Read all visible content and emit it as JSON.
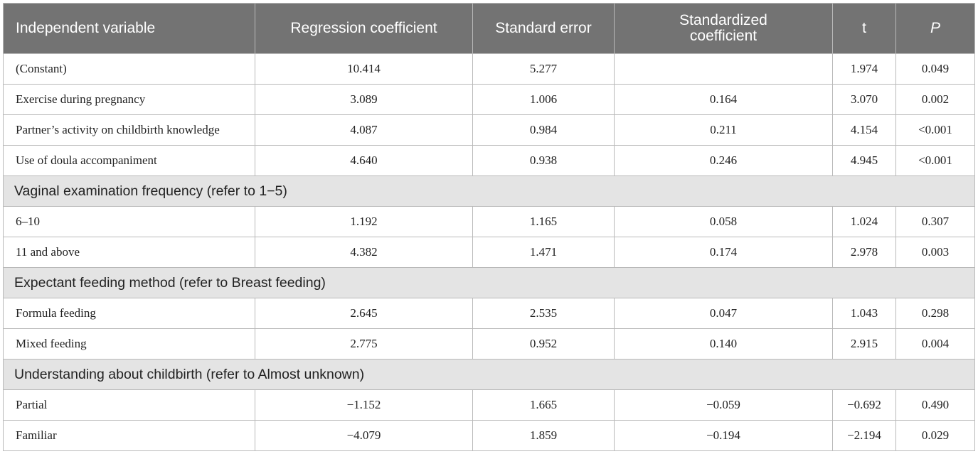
{
  "table": {
    "headers": [
      "Independent variable",
      "Regression coefficient",
      "Standard error",
      "Standardized coefficient",
      "t",
      "P"
    ],
    "rows": [
      {
        "type": "data",
        "cells": [
          "(Constant)",
          "10.414",
          "5.277",
          "",
          "1.974",
          "0.049"
        ]
      },
      {
        "type": "data",
        "cells": [
          "Exercise during pregnancy",
          "3.089",
          "1.006",
          "0.164",
          "3.070",
          "0.002"
        ]
      },
      {
        "type": "data",
        "cells": [
          "Partner’s activity on childbirth knowledge",
          "4.087",
          "0.984",
          "0.211",
          "4.154",
          "<0.001"
        ]
      },
      {
        "type": "data",
        "cells": [
          "Use of doula accompaniment",
          "4.640",
          "0.938",
          "0.246",
          "4.945",
          "<0.001"
        ]
      },
      {
        "type": "group",
        "label": "Vaginal examination frequency (refer to 1−5)"
      },
      {
        "type": "data",
        "cells": [
          "6–10",
          "1.192",
          "1.165",
          "0.058",
          "1.024",
          "0.307"
        ]
      },
      {
        "type": "data",
        "cells": [
          "11 and above",
          "4.382",
          "1.471",
          "0.174",
          "2.978",
          "0.003"
        ]
      },
      {
        "type": "group",
        "label": "Expectant feeding method (refer to Breast feeding)"
      },
      {
        "type": "data",
        "cells": [
          "Formula feeding",
          "2.645",
          "2.535",
          "0.047",
          "1.043",
          "0.298"
        ]
      },
      {
        "type": "data",
        "cells": [
          "Mixed feeding",
          "2.775",
          "0.952",
          "0.140",
          "2.915",
          "0.004"
        ]
      },
      {
        "type": "group",
        "label": "Understanding about childbirth (refer to Almost unknown)"
      },
      {
        "type": "data",
        "cells": [
          "Partial",
          "−1.152",
          "1.665",
          "−0.059",
          "−0.692",
          "0.490"
        ]
      },
      {
        "type": "data",
        "cells": [
          "Familiar",
          "−4.079",
          "1.859",
          "−0.194",
          "−2.194",
          "0.029"
        ]
      }
    ]
  },
  "colors": {
    "header_bg": "#737373",
    "group_bg": "#e4e4e4",
    "border": "#b9b9b9"
  }
}
